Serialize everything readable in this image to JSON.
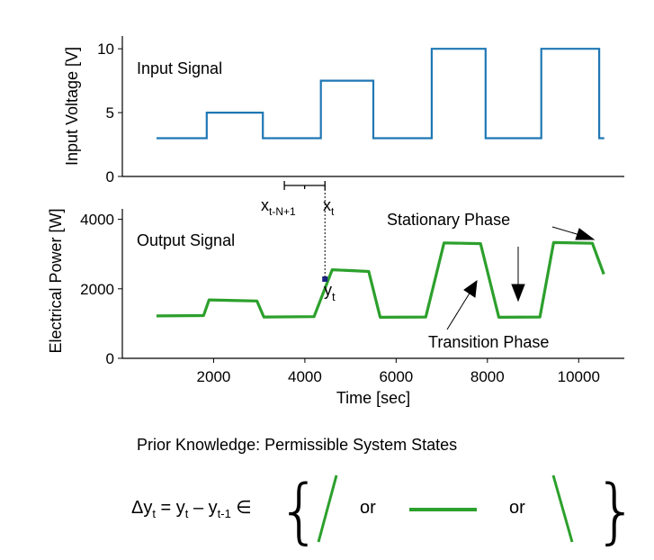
{
  "colors": {
    "input_line": "#1f77b4",
    "output_line": "#2ca02c",
    "marker": "#1a237e",
    "axis": "#000000"
  },
  "chart_data": [
    {
      "type": "line",
      "title": "",
      "annotation": "Input Signal",
      "ylabel": "Input Voltage [V]",
      "ylim": [
        0,
        11
      ],
      "yticks": [
        0,
        5,
        10
      ],
      "xlim": [
        0,
        11000
      ],
      "series": [
        {
          "x": [
            750,
            1850,
            1850,
            3080,
            3080,
            4350,
            4350,
            5500,
            5500,
            6780,
            6780,
            7960,
            7960,
            9180,
            9180,
            10450,
            10450,
            10560
          ],
          "y": [
            3,
            3,
            5,
            5,
            3,
            3,
            7.5,
            7.5,
            3,
            3,
            10,
            10,
            3,
            3,
            10,
            10,
            3,
            3
          ]
        }
      ]
    },
    {
      "type": "line",
      "title": "",
      "annotation": "Output Signal",
      "xlabel": "Time [sec]",
      "ylabel": "Electrical Power [W]",
      "xlim": [
        0,
        11000
      ],
      "ylim": [
        0,
        4300
      ],
      "xticks": [
        2000,
        4000,
        6000,
        8000,
        10000
      ],
      "yticks": [
        0,
        2000,
        4000
      ],
      "series": [
        {
          "x": [
            750,
            1780,
            1900,
            2950,
            3100,
            4200,
            4600,
            5400,
            5650,
            6650,
            7050,
            7850,
            8250,
            9150,
            9450,
            10300,
            10550
          ],
          "y": [
            1220,
            1230,
            1680,
            1650,
            1190,
            1200,
            2550,
            2500,
            1180,
            1190,
            3320,
            3300,
            1180,
            1190,
            3330,
            3310,
            2420
          ]
        }
      ],
      "highlight_point": {
        "x": 4440,
        "y": 2280,
        "label_main": "y",
        "label_sub": "t"
      },
      "window": {
        "x_start": 3550,
        "x_end": 4440
      }
    }
  ],
  "annotations": {
    "window_start_main": "x",
    "window_start_sub": "t-N+1",
    "window_end_main": "x",
    "window_end_sub": "t",
    "stationary_phase": "Stationary Phase",
    "transition_phase": "Transition Phase"
  },
  "prior_knowledge": {
    "title": "Prior Knowledge: Permissible System States",
    "formula": {
      "delta": "Δy",
      "sub1": "t",
      "eq": " = y",
      "sub2": "t",
      "minus": " – y",
      "sub3": "t-1",
      "element_of": " ∈"
    },
    "brace_left": "{",
    "brace_right": "}",
    "or_1": "or",
    "or_2": "or"
  }
}
